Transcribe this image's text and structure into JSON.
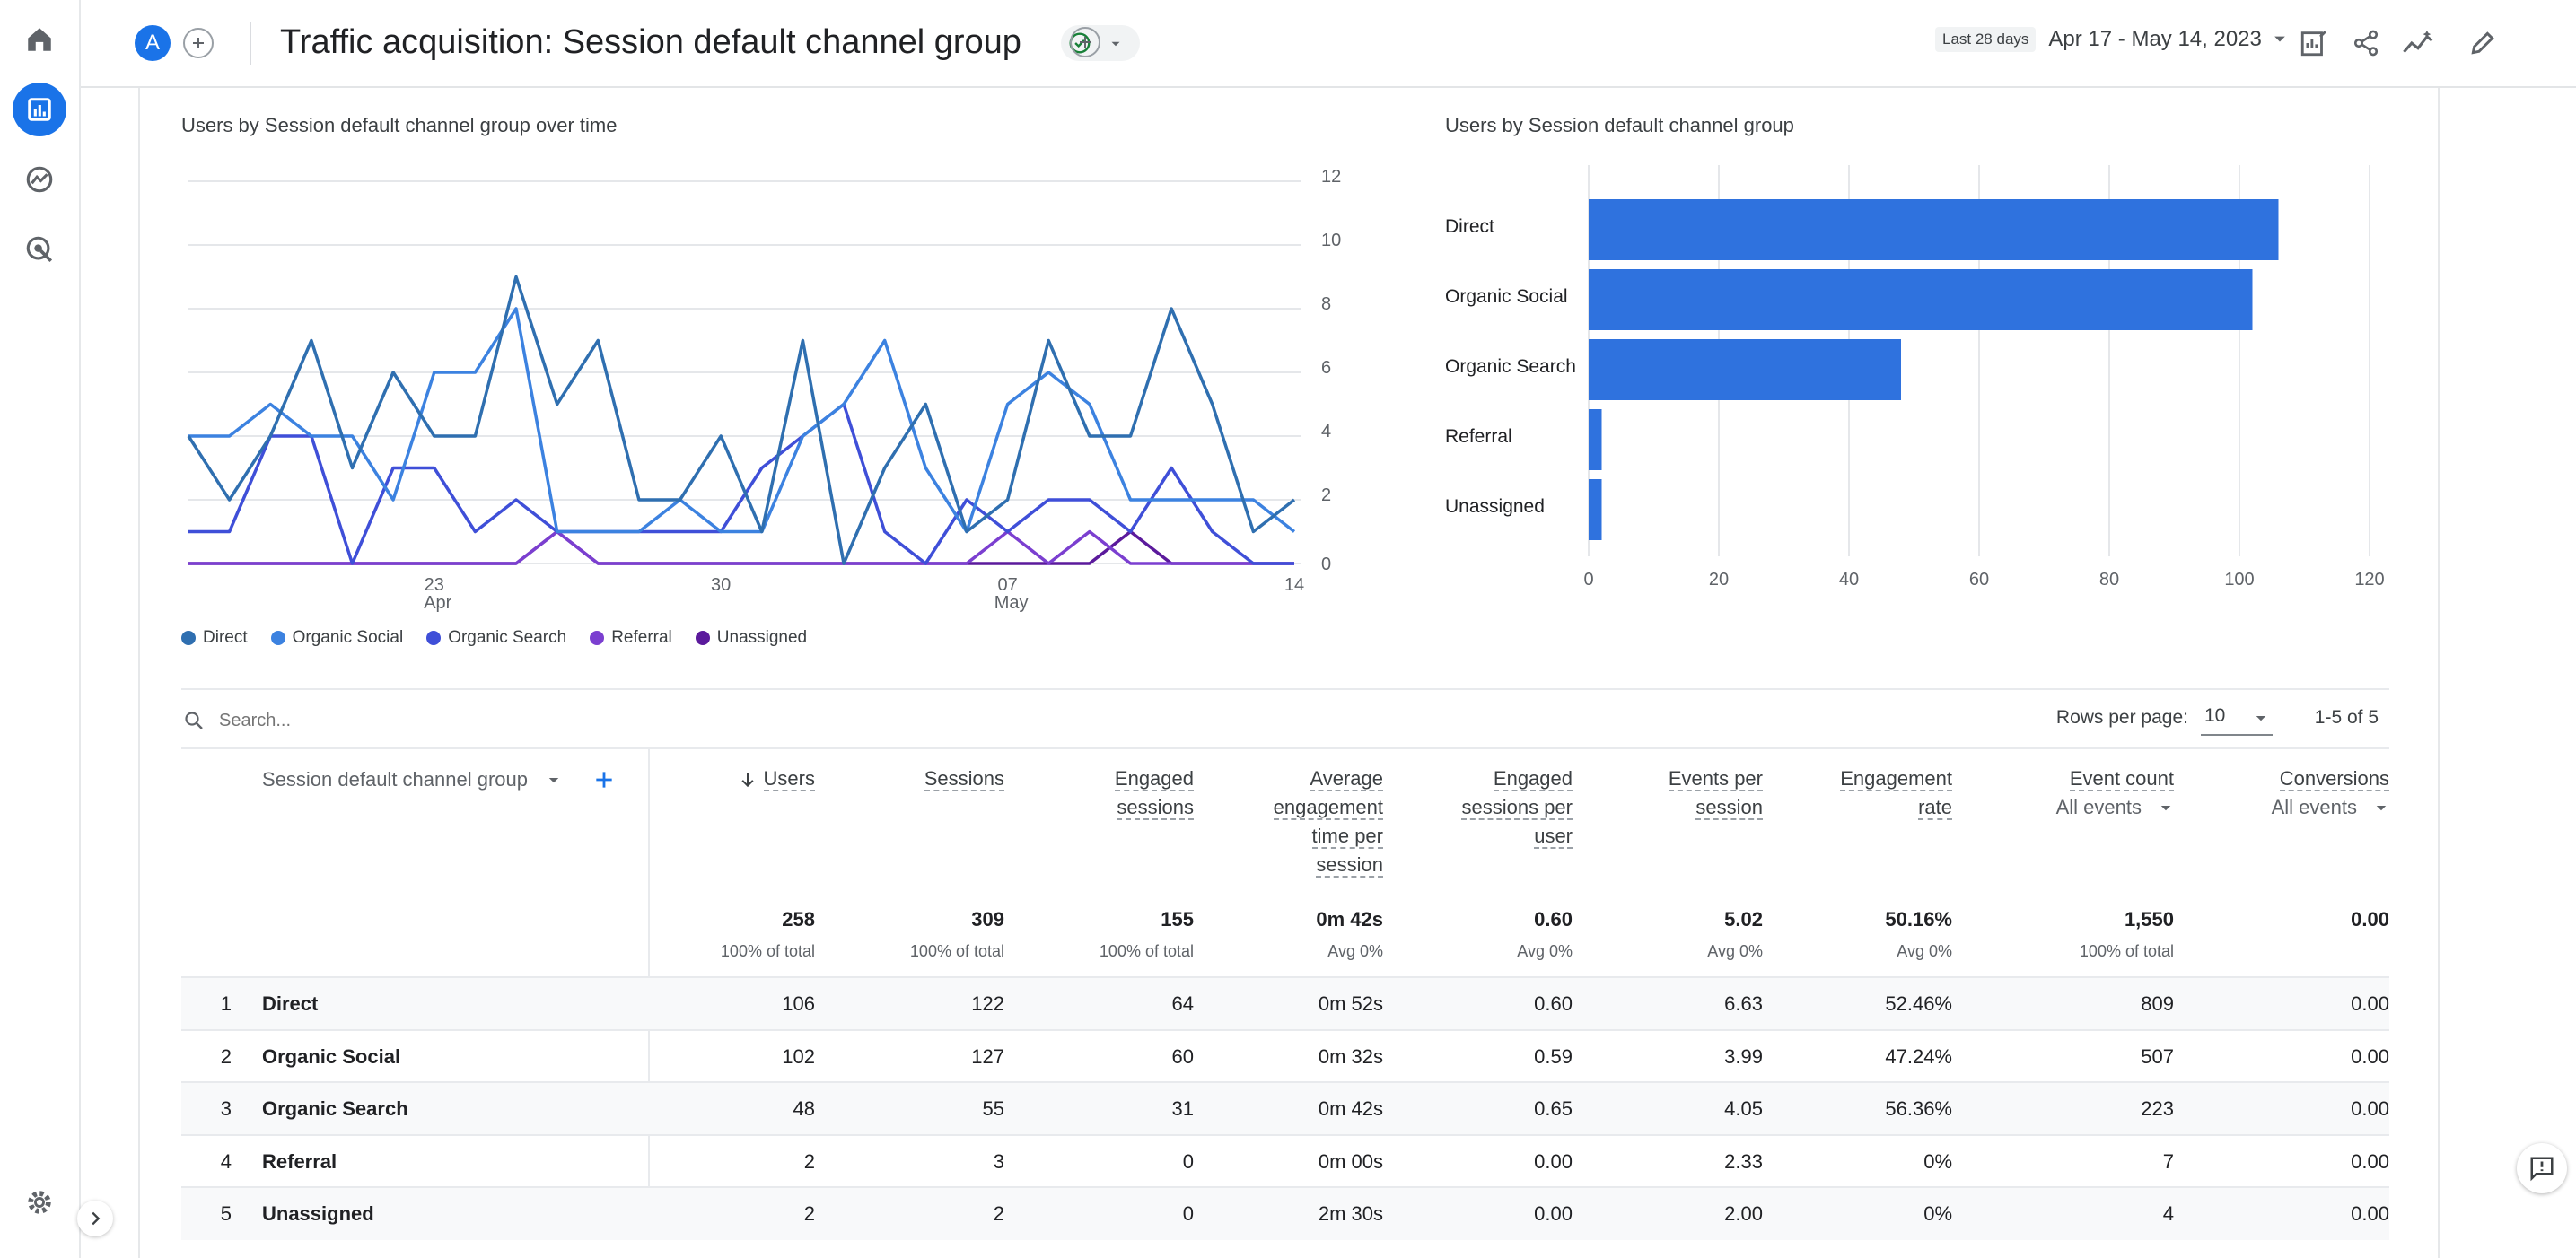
{
  "header": {
    "avatar_letter": "A",
    "title": "Traffic acquisition: Session default channel group",
    "date_tag": "Last 28 days",
    "date_range": "Apr 17 - May 14, 2023"
  },
  "rail": {
    "icons": [
      "home-icon",
      "reports-icon",
      "explore-icon",
      "advertising-icon",
      "settings-icon",
      "expand-icon"
    ]
  },
  "line_chart": {
    "title": "Users by Session default channel group over time",
    "y_ticks": [
      "12",
      "10",
      "8",
      "6",
      "4",
      "2",
      "0"
    ],
    "x_ticks": [
      {
        "label": "23",
        "sub": "Apr"
      },
      {
        "label": "30",
        "sub": ""
      },
      {
        "label": "07",
        "sub": "May"
      },
      {
        "label": "14",
        "sub": ""
      }
    ],
    "legend": [
      "Direct",
      "Organic Social",
      "Organic Search",
      "Referral",
      "Unassigned"
    ]
  },
  "bar_chart": {
    "title": "Users by Session default channel group",
    "x_ticks": [
      "0",
      "20",
      "40",
      "60",
      "80",
      "100",
      "120"
    ]
  },
  "chart_data": [
    {
      "type": "line",
      "title": "Users by Session default channel group over time",
      "x": [
        "Apr 17",
        "Apr 18",
        "Apr 19",
        "Apr 20",
        "Apr 21",
        "Apr 22",
        "Apr 23",
        "Apr 24",
        "Apr 25",
        "Apr 26",
        "Apr 27",
        "Apr 28",
        "Apr 29",
        "Apr 30",
        "May 1",
        "May 2",
        "May 3",
        "May 4",
        "May 5",
        "May 6",
        "May 7",
        "May 8",
        "May 9",
        "May 10",
        "May 11",
        "May 12",
        "May 13",
        "May 14"
      ],
      "ylim": [
        0,
        12
      ],
      "series": [
        {
          "name": "Direct",
          "color": "#2f6fb0",
          "values": [
            4,
            2,
            4,
            7,
            3,
            6,
            4,
            4,
            9,
            5,
            7,
            2,
            2,
            4,
            1,
            7,
            0,
            3,
            5,
            1,
            2,
            7,
            4,
            4,
            8,
            5,
            1,
            2
          ]
        },
        {
          "name": "Organic Social",
          "color": "#3c82e0",
          "values": [
            4,
            4,
            5,
            4,
            4,
            2,
            6,
            6,
            8,
            1,
            1,
            1,
            2,
            1,
            1,
            4,
            5,
            7,
            3,
            1,
            5,
            6,
            5,
            2,
            2,
            2,
            2,
            1
          ]
        },
        {
          "name": "Organic Search",
          "color": "#3f4fd8",
          "values": [
            1,
            1,
            4,
            4,
            0,
            3,
            3,
            1,
            2,
            1,
            1,
            1,
            1,
            1,
            3,
            4,
            5,
            1,
            0,
            2,
            1,
            2,
            2,
            1,
            3,
            1,
            0,
            0
          ]
        },
        {
          "name": "Referral",
          "color": "#7b3fd0",
          "values": [
            0,
            0,
            0,
            0,
            0,
            0,
            0,
            0,
            0,
            1,
            0,
            0,
            0,
            0,
            0,
            0,
            0,
            0,
            0,
            0,
            1,
            0,
            1,
            0,
            0,
            0,
            0,
            0
          ]
        },
        {
          "name": "Unassigned",
          "color": "#5b1a9c",
          "values": [
            0,
            0,
            0,
            0,
            0,
            0,
            0,
            0,
            0,
            1,
            0,
            0,
            0,
            0,
            0,
            0,
            0,
            0,
            0,
            0,
            0,
            0,
            0,
            1,
            0,
            0,
            0,
            0
          ]
        }
      ]
    },
    {
      "type": "bar",
      "title": "Users by Session default channel group",
      "orientation": "horizontal",
      "categories": [
        "Direct",
        "Organic Social",
        "Organic Search",
        "Referral",
        "Unassigned"
      ],
      "values": [
        106,
        102,
        48,
        2,
        2
      ],
      "xlim": [
        0,
        120
      ],
      "color": "#2f72de"
    }
  ],
  "search": {
    "placeholder": "Search..."
  },
  "pagination": {
    "rows_label": "Rows per page:",
    "rows_value": "10",
    "range": "1-5 of 5"
  },
  "table": {
    "dimension_header": "Session default channel group",
    "columns": [
      {
        "key": "users",
        "lines": [
          "Users"
        ],
        "total": "258",
        "sub": "100% of total"
      },
      {
        "key": "sessions",
        "lines": [
          "Sessions"
        ],
        "total": "309",
        "sub": "100% of total"
      },
      {
        "key": "engaged_sessions",
        "lines": [
          "Engaged",
          "sessions"
        ],
        "total": "155",
        "sub": "100% of total"
      },
      {
        "key": "avg_engagement",
        "lines": [
          "Average",
          "engagement",
          "time per",
          "session"
        ],
        "total": "0m 42s",
        "sub": "Avg 0%"
      },
      {
        "key": "engaged_per_user",
        "lines": [
          "Engaged",
          "sessions per",
          "user"
        ],
        "total": "0.60",
        "sub": "Avg 0%"
      },
      {
        "key": "events_per_session",
        "lines": [
          "Events per",
          "session"
        ],
        "total": "5.02",
        "sub": "Avg 0%"
      },
      {
        "key": "engagement_rate",
        "lines": [
          "Engagement",
          "rate"
        ],
        "total": "50.16%",
        "sub": "Avg 0%"
      },
      {
        "key": "event_count",
        "lines": [
          "Event count"
        ],
        "select": "All events",
        "total": "1,550",
        "sub": "100% of total"
      },
      {
        "key": "conversions",
        "lines": [
          "Conversions"
        ],
        "select": "All events",
        "total": "0.00",
        "sub": ""
      }
    ],
    "rows": [
      {
        "n": "1",
        "label": "Direct",
        "cells": [
          "106",
          "122",
          "64",
          "0m 52s",
          "0.60",
          "6.63",
          "52.46%",
          "809",
          "0.00"
        ]
      },
      {
        "n": "2",
        "label": "Organic Social",
        "cells": [
          "102",
          "127",
          "60",
          "0m 32s",
          "0.59",
          "3.99",
          "47.24%",
          "507",
          "0.00"
        ]
      },
      {
        "n": "3",
        "label": "Organic Search",
        "cells": [
          "48",
          "55",
          "31",
          "0m 42s",
          "0.65",
          "4.05",
          "56.36%",
          "223",
          "0.00"
        ]
      },
      {
        "n": "4",
        "label": "Referral",
        "cells": [
          "2",
          "3",
          "0",
          "0m 00s",
          "0.00",
          "2.33",
          "0%",
          "7",
          "0.00"
        ]
      },
      {
        "n": "5",
        "label": "Unassigned",
        "cells": [
          "2",
          "2",
          "0",
          "2m 30s",
          "0.00",
          "2.00",
          "0%",
          "4",
          "0.00"
        ]
      }
    ]
  }
}
